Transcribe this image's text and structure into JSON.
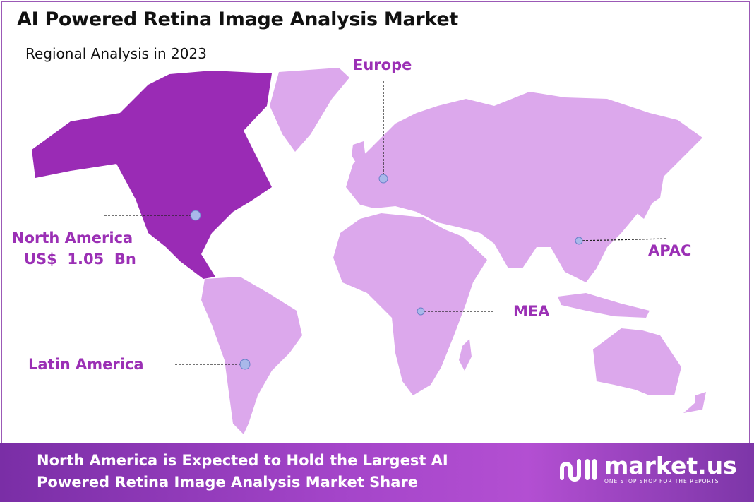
{
  "header": {
    "title": "AI Powered Retina Image Analysis Market",
    "subtitle": "Regional Analysis in 2023"
  },
  "map": {
    "highlight_color": "#9a2bb5",
    "base_color": "#dca8ec",
    "marker_color": "#a9b8ea",
    "label_color": "#9b30b5",
    "highlighted_region": "North America",
    "regions": [
      {
        "name": "North America",
        "value": "US$  1.05  Bn"
      },
      {
        "name": "Europe"
      },
      {
        "name": "APAC"
      },
      {
        "name": "MEA"
      },
      {
        "name": "Latin America"
      }
    ]
  },
  "footer": {
    "line1": "North America is Expected to Hold the Largest AI",
    "line2": "Powered Retina Image Analysis Market Share",
    "brand": "market.us",
    "tagline": "ONE STOP SHOP FOR THE REPORTS"
  }
}
